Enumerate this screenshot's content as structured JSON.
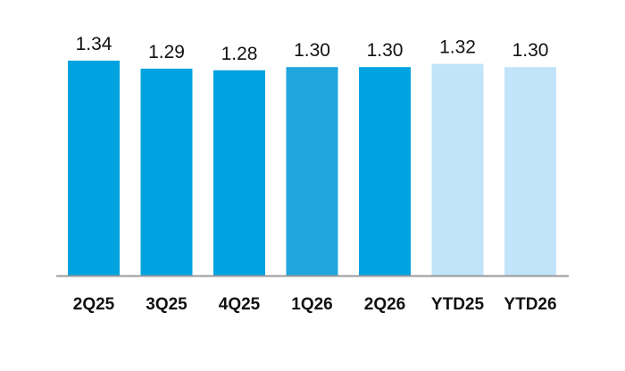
{
  "chart_data": {
    "type": "bar",
    "categories": [
      "2Q25",
      "3Q25",
      "4Q25",
      "1Q26",
      "2Q26",
      "YTD25",
      "YTD26"
    ],
    "values": [
      1.34,
      1.29,
      1.28,
      1.3,
      1.3,
      1.32,
      1.3
    ],
    "value_labels": [
      "1.34",
      "1.29",
      "1.28",
      "1.30",
      "1.30",
      "1.32",
      "1.30"
    ],
    "bar_colors": [
      "#00a3e0",
      "#00a3e0",
      "#00a3e0",
      "#20a6df",
      "#00a3e0",
      "#c2e4fb",
      "#c2e4fb"
    ],
    "axis_color": "#999999",
    "ylim": [
      0,
      1.34
    ],
    "grid": false,
    "legend": "none"
  }
}
